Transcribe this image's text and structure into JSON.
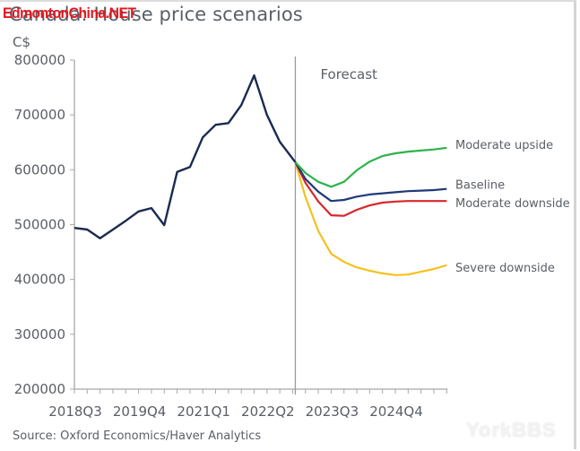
{
  "watermarks": {
    "top_left": "EdmontonChina.NET",
    "bottom_right": "YorkBBS"
  },
  "source": "Source: Oxford Economics/Haver Analytics",
  "chart_data": {
    "type": "line",
    "title": "Canada: House price scenarios",
    "ylabel": "C$",
    "xlabel": "",
    "ylim": [
      200000,
      800000
    ],
    "yticks": [
      200000,
      300000,
      400000,
      500000,
      600000,
      700000,
      800000
    ],
    "ytick_labels": [
      "200000",
      "300000",
      "400000",
      "500000",
      "600000",
      "700000",
      "800000"
    ],
    "xtick_labels": [
      {
        "label": "2018Q3",
        "index": 0
      },
      {
        "label": "2019Q4",
        "index": 5
      },
      {
        "label": "2021Q1",
        "index": 10
      },
      {
        "label": "2022Q2",
        "index": 15
      },
      {
        "label": "2023Q3",
        "index": 20
      },
      {
        "label": "2024Q4",
        "index": 25
      }
    ],
    "x_count": 31,
    "forecast_index": 17,
    "forecast_label": "Forecast",
    "grid": false,
    "history": {
      "name": "Actual",
      "color": "#1a2a52",
      "start_index": 0,
      "values": [
        494000,
        491000,
        475000,
        491000,
        507000,
        524000,
        530000,
        499000,
        596000,
        605000,
        659000,
        682000,
        685000,
        718000,
        772000,
        700000,
        651000,
        614000
      ]
    },
    "series": [
      {
        "name": "Moderate upside",
        "color": "#2db34a",
        "start_index": 17,
        "values": [
          614000,
          594000,
          578000,
          569000,
          578000,
          599000,
          615000,
          625000,
          630000,
          633000,
          635000,
          637000,
          640000
        ]
      },
      {
        "name": "Baseline",
        "color": "#1f3a78",
        "start_index": 17,
        "values": [
          614000,
          583000,
          560000,
          543000,
          545000,
          551000,
          555000,
          557000,
          559000,
          561000,
          562000,
          563000,
          565000
        ]
      },
      {
        "name": "Moderate downside",
        "color": "#d9262b",
        "start_index": 17,
        "values": [
          614000,
          576000,
          542000,
          517000,
          516000,
          527000,
          535000,
          540000,
          542000,
          543000,
          543000,
          543000,
          543000
        ]
      },
      {
        "name": "Severe downside",
        "color": "#f5c11c",
        "start_index": 17,
        "values": [
          614000,
          550000,
          488000,
          447000,
          432000,
          422000,
          416000,
          411000,
          408000,
          409000,
          414000,
          419000,
          426000
        ]
      }
    ]
  }
}
